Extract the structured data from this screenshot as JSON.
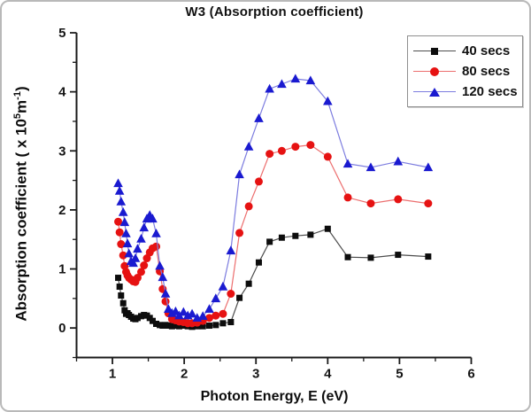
{
  "figure": {
    "title": "W3 (Absorption coefficient)",
    "xlabel": "Photon Energy, E (eV)",
    "ylabel_prefix": "Absorption coefficient ( x 10",
    "ylabel_exp": "5",
    "ylabel_unit": "m",
    "ylabel_unit_exp": "-1",
    "ylabel_suffix": ")"
  },
  "chart_data": {
    "type": "line",
    "title": "W3 (Absorption coefficient)",
    "xlabel": "Photon Energy, E (eV)",
    "ylabel": "Absorption coefficient ( x 10^5 m^-1)",
    "xlim": [
      0.5,
      6
    ],
    "ylim": [
      -0.5,
      5
    ],
    "x_ticks": [
      1,
      2,
      3,
      4,
      5,
      6
    ],
    "y_ticks": [
      0,
      1,
      2,
      3,
      4,
      5
    ],
    "minor_tick_step": 0.5,
    "grid": false,
    "legend_position": "top-right",
    "axis_color": "#1a1a1a",
    "x": [
      1.08,
      1.1,
      1.12,
      1.15,
      1.17,
      1.19,
      1.21,
      1.23,
      1.26,
      1.29,
      1.32,
      1.35,
      1.4,
      1.44,
      1.48,
      1.52,
      1.56,
      1.61,
      1.66,
      1.7,
      1.74,
      1.78,
      1.83,
      1.88,
      1.93,
      1.99,
      2.05,
      2.11,
      2.18,
      2.26,
      2.35,
      2.44,
      2.54,
      2.65,
      2.77,
      2.9,
      3.04,
      3.19,
      3.36,
      3.55,
      3.76,
      4.0,
      4.28,
      4.6,
      4.98,
      5.4
    ],
    "series": [
      {
        "name": "40 secs",
        "marker": "square",
        "color": "#0d0d0d",
        "line_color": "#4d4d4d",
        "values": [
          0.85,
          0.7,
          0.55,
          0.42,
          0.3,
          0.24,
          0.25,
          0.22,
          0.19,
          0.16,
          0.15,
          0.17,
          0.2,
          0.22,
          0.21,
          0.17,
          0.12,
          0.07,
          0.05,
          0.04,
          0.05,
          0.04,
          0.03,
          0.04,
          0.03,
          0.04,
          0.03,
          0.02,
          0.03,
          0.03,
          0.04,
          0.05,
          0.08,
          0.1,
          0.51,
          0.75,
          1.11,
          1.46,
          1.53,
          1.56,
          1.58,
          1.68,
          1.2,
          1.19,
          1.24,
          1.21
        ]
      },
      {
        "name": "80 secs",
        "marker": "circle",
        "color": "#e61212",
        "line_color": "#ec6e6e",
        "values": [
          1.8,
          1.62,
          1.42,
          1.23,
          1.05,
          0.95,
          0.89,
          0.85,
          0.82,
          0.79,
          0.78,
          0.85,
          0.95,
          1.06,
          1.18,
          1.28,
          1.35,
          1.38,
          0.96,
          0.66,
          0.45,
          0.25,
          0.15,
          0.13,
          0.11,
          0.1,
          0.08,
          0.08,
          0.09,
          0.12,
          0.17,
          0.21,
          0.24,
          0.58,
          1.61,
          2.06,
          2.48,
          2.95,
          3.0,
          3.07,
          3.1,
          2.9,
          2.21,
          2.11,
          2.18,
          2.11
        ]
      },
      {
        "name": "120 secs",
        "marker": "triangle",
        "color": "#1a1ad0",
        "line_color": "#7c7cdf",
        "values": [
          2.45,
          2.32,
          2.14,
          1.96,
          1.79,
          1.6,
          1.43,
          1.26,
          1.13,
          1.1,
          1.18,
          1.34,
          1.51,
          1.7,
          1.85,
          1.91,
          1.85,
          1.6,
          1.05,
          0.86,
          0.58,
          0.32,
          0.25,
          0.28,
          0.21,
          0.27,
          0.21,
          0.24,
          0.17,
          0.2,
          0.32,
          0.5,
          0.7,
          1.31,
          2.6,
          3.07,
          3.55,
          4.05,
          4.13,
          4.22,
          4.19,
          3.84,
          2.78,
          2.72,
          2.82,
          2.72
        ]
      }
    ]
  }
}
